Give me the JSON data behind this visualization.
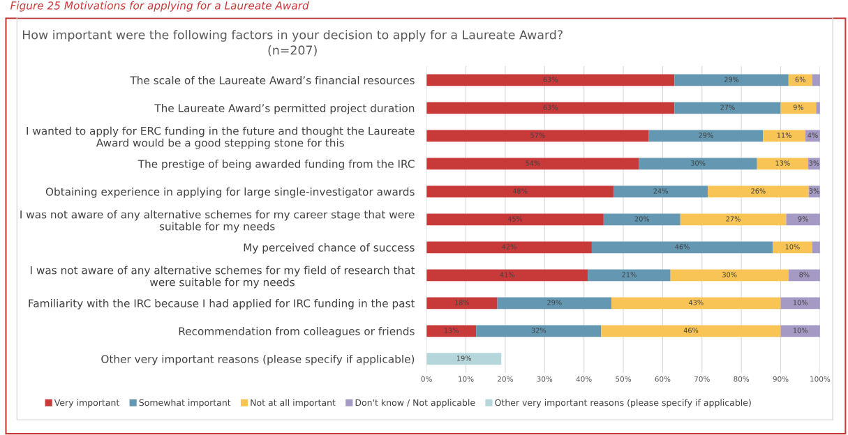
{
  "chart_data": {
    "type": "bar",
    "orientation": "horizontal",
    "stacked": true,
    "title": "How important were the following factors in your decision to apply for a Laureate Award?\n(n=207)",
    "annotations": [
      "Figure 25 Motivations for applying for a Laureate Award"
    ],
    "categories": [
      "The scale of the Laureate Award’s financial resources",
      "The Laureate Award’s permitted project duration",
      "I wanted to apply for ERC funding in the future and thought the Laureate\nAward would be a good stepping stone for this",
      "The prestige of being awarded funding from the IRC",
      "Obtaining experience in applying for large single-investigator awards",
      "I was not aware of any alternative schemes for my career stage that were\nsuitable for my needs",
      "My perceived chance of success",
      "I was not aware of any alternative schemes for my field of research that\nwere suitable for my needs",
      "Familiarity with the IRC because I had applied for IRC funding in the past",
      "Recommendation from colleagues or friends",
      "Other very important reasons (please specify if applicable)"
    ],
    "series": [
      {
        "name": "Very important",
        "color": "#c83a3a",
        "values": [
          63,
          63,
          56.5,
          54,
          47.5,
          45,
          42,
          41,
          18,
          12.6,
          null
        ],
        "value_labels": [
          "63%",
          "63%",
          "57%",
          "54%",
          "48%",
          "45%",
          "42%",
          "41%",
          "18%",
          "13%",
          null
        ]
      },
      {
        "name": "Somewhat important",
        "color": "#6497b1",
        "values": [
          29,
          27,
          29,
          30,
          24,
          19.5,
          46,
          21,
          29,
          31.8,
          null
        ],
        "value_labels": [
          "29%",
          "27%",
          "29%",
          "30%",
          "24%",
          "20%",
          "46%",
          "21%",
          "29%",
          "32%",
          null
        ]
      },
      {
        "name": "Not at all important",
        "color": "#f7c455",
        "values": [
          6,
          9,
          10.8,
          13,
          25.6,
          26.9,
          10,
          30,
          43,
          45.6,
          null
        ],
        "value_labels": [
          "6%",
          "9%",
          "11%",
          "13%",
          "26%",
          "27%",
          "10%",
          "30%",
          "43%",
          "46%",
          null
        ]
      },
      {
        "name": "Don't know / Not applicable",
        "color": "#a49ac3",
        "values": [
          2,
          1,
          3.7,
          3,
          2.9,
          8.6,
          2,
          8,
          10,
          10,
          null
        ],
        "value_labels": [
          null,
          null,
          "4%",
          "3%",
          "3%",
          "9%",
          null,
          "8%",
          "10%",
          "10%",
          null
        ]
      },
      {
        "name": "Other very important reasons (please specify if applicable)",
        "color": "#b5d6da",
        "values": [
          null,
          null,
          null,
          null,
          null,
          null,
          null,
          null,
          null,
          null,
          19
        ],
        "value_labels": [
          null,
          null,
          null,
          null,
          null,
          null,
          null,
          null,
          null,
          null,
          "19%"
        ]
      }
    ],
    "xlim": [
      0,
      100
    ],
    "xticks": [
      {
        "value": 0,
        "label": "0%"
      },
      {
        "value": 10,
        "label": "10%"
      },
      {
        "value": 20,
        "label": "20%"
      },
      {
        "value": 30,
        "label": "30%"
      },
      {
        "value": 40,
        "label": "40%"
      },
      {
        "value": 50,
        "label": "50%"
      },
      {
        "value": 60,
        "label": "60%"
      },
      {
        "value": 70,
        "label": "70%"
      },
      {
        "value": 80,
        "label": "80%"
      },
      {
        "value": 90,
        "label": "90%"
      },
      {
        "value": 100,
        "label": "100%"
      }
    ],
    "grid": "x",
    "legend": "bottom"
  }
}
